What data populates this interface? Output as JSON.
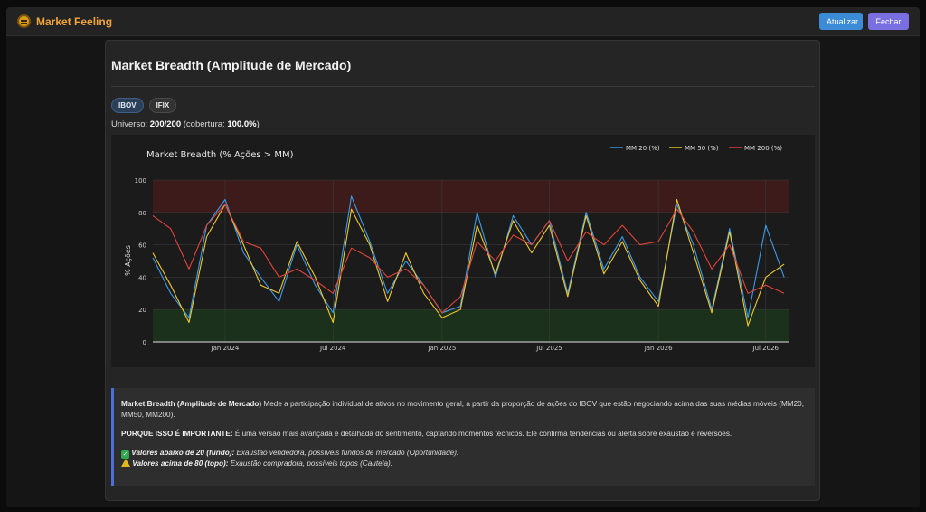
{
  "app": {
    "title": "Market Feeling"
  },
  "toolbar": {
    "update_label": "Atualizar",
    "close_label": "Fechar"
  },
  "panel": {
    "title": "Market Breadth (Amplitude de Mercado)",
    "chips": [
      {
        "label": "IBOV",
        "active": true
      },
      {
        "label": "IFIX",
        "active": false
      }
    ],
    "universe": {
      "prefix": "Universo: ",
      "value": "200/200",
      "coverage_prefix": " (cobertura: ",
      "coverage": "100.0%",
      "suffix": ")"
    }
  },
  "colors": {
    "mm20": "#3d9be9",
    "mm50": "#f1c82b",
    "mm200": "#e2443a",
    "overbought_zone": "#4a1c1c",
    "oversold_zone": "#1c3a1c"
  },
  "chart_data": {
    "type": "line",
    "title": "Market Breadth (% Ações > MM)",
    "ylabel": "% Ações",
    "xlabel": "",
    "ylim": [
      0,
      100
    ],
    "yticks": [
      0,
      20,
      40,
      60,
      80,
      100
    ],
    "xlim": [
      "2023-09-01",
      "2026-08-10"
    ],
    "xticks": [
      {
        "date": "2024-01-01",
        "label": "Jan 2024"
      },
      {
        "date": "2024-07-01",
        "label": "Jul 2024"
      },
      {
        "date": "2025-01-01",
        "label": "Jan 2025"
      },
      {
        "date": "2025-07-01",
        "label": "Jul 2025"
      },
      {
        "date": "2026-01-01",
        "label": "Jan 2026"
      },
      {
        "date": "2026-07-01",
        "label": "Jul 2026"
      }
    ],
    "zones": [
      {
        "from": 80,
        "to": 100,
        "kind": "overbought"
      },
      {
        "from": 0,
        "to": 20,
        "kind": "oversold"
      }
    ],
    "legend_position": "top-right",
    "x": [
      "2023-09-01",
      "2023-10-01",
      "2023-11-01",
      "2023-12-01",
      "2024-01-01",
      "2024-02-01",
      "2024-03-01",
      "2024-04-01",
      "2024-05-01",
      "2024-06-01",
      "2024-07-01",
      "2024-08-01",
      "2024-09-01",
      "2024-10-01",
      "2024-11-01",
      "2024-12-01",
      "2025-01-01",
      "2025-02-01",
      "2025-03-01",
      "2025-04-01",
      "2025-05-01",
      "2025-06-01",
      "2025-07-01",
      "2025-08-01",
      "2025-09-01",
      "2025-10-01",
      "2025-11-01",
      "2025-12-01",
      "2026-01-01",
      "2026-02-01",
      "2026-03-01",
      "2026-04-01",
      "2026-05-01",
      "2026-06-01",
      "2026-07-01",
      "2026-08-01"
    ],
    "series": [
      {
        "name": "MM 20 (%)",
        "values": [
          52,
          30,
          15,
          72,
          88,
          55,
          40,
          25,
          60,
          35,
          18,
          90,
          62,
          30,
          50,
          35,
          18,
          22,
          80,
          40,
          78,
          60,
          75,
          30,
          80,
          45,
          65,
          40,
          25,
          85,
          60,
          20,
          70,
          15,
          72,
          40
        ]
      },
      {
        "name": "MM 50 (%)",
        "values": [
          55,
          35,
          12,
          65,
          85,
          60,
          35,
          30,
          62,
          40,
          12,
          82,
          60,
          25,
          55,
          30,
          15,
          20,
          72,
          42,
          75,
          55,
          72,
          28,
          78,
          42,
          62,
          38,
          22,
          88,
          55,
          18,
          68,
          10,
          40,
          48
        ]
      },
      {
        "name": "MM 200 (%)",
        "values": [
          78,
          70,
          45,
          72,
          85,
          62,
          58,
          40,
          45,
          38,
          30,
          58,
          52,
          40,
          45,
          35,
          18,
          28,
          62,
          50,
          66,
          60,
          75,
          50,
          68,
          60,
          72,
          60,
          62,
          82,
          68,
          45,
          60,
          30,
          35,
          30
        ]
      }
    ]
  },
  "description": {
    "p1_bold": "Market Breadth (Amplitude de Mercado)",
    "p1_text": " Mede a participação individual de ativos no movimento geral, a partir da proporção de ações do IBOV que estão negociando acima das suas médias móveis (MM20, MM50, MM200).",
    "p2_bold": "PORQUE ISSO É IMPORTANTE:",
    "p2_text": " É uma versão mais avançada e detalhada do sentimento, captando momentos técnicos. Ele confirma tendências ou alerta sobre exaustão e reversões.",
    "low_bold": "Valores abaixo de 20 (fundo):",
    "low_text": " Exaustão vendedora, possíveis fundos de mercado (Oportunidade).",
    "high_bold": "Valores acima de 80 (topo):",
    "high_text": " Exaustão compradora, possíveis topos (Cautela)."
  }
}
